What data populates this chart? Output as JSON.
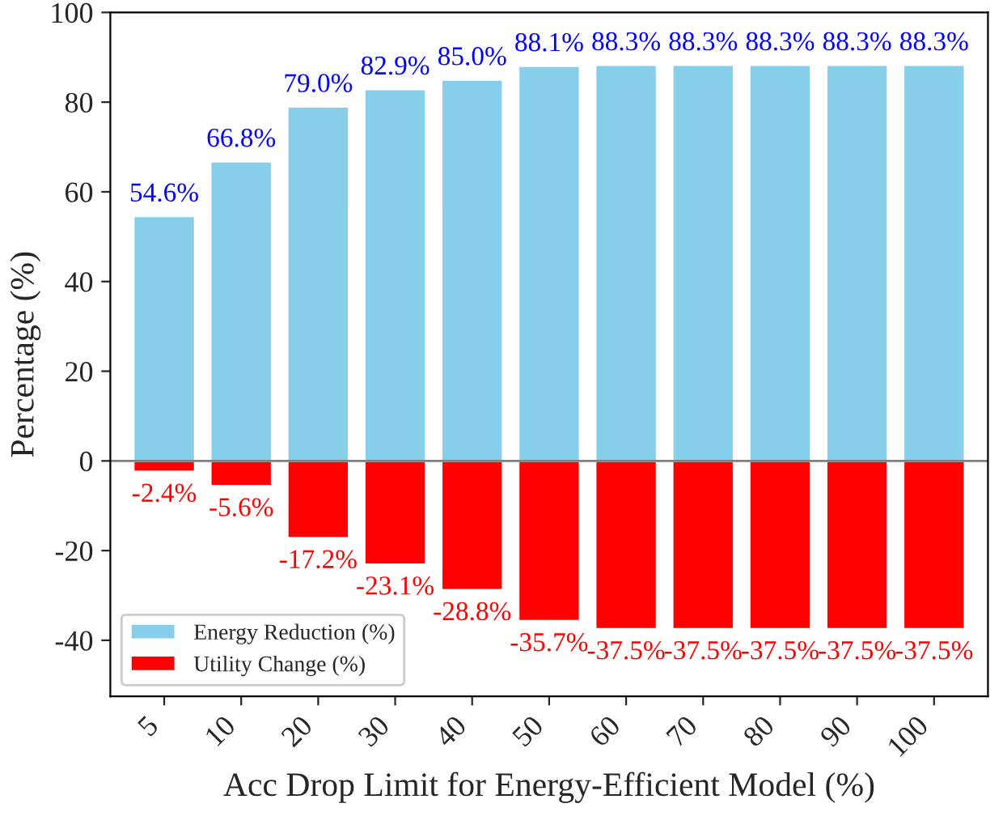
{
  "chart_data": {
    "type": "bar",
    "xlabel": "Acc Drop Limit for Energy-Efficient Model (%)",
    "ylabel": "Percentage (%)",
    "categories": [
      "5",
      "10",
      "20",
      "30",
      "40",
      "50",
      "60",
      "70",
      "80",
      "90",
      "100"
    ],
    "series": [
      {
        "name": "Energy Reduction (%)",
        "color": "#87ceeb",
        "values": [
          54.6,
          66.8,
          79.0,
          82.9,
          85.0,
          88.1,
          88.3,
          88.3,
          88.3,
          88.3,
          88.3
        ],
        "value_labels": [
          "54.6%",
          "66.8%",
          "79.0%",
          "82.9%",
          "85.0%",
          "88.1%",
          "88.3%",
          "88.3%",
          "88.3%",
          "88.3%",
          "88.3%"
        ]
      },
      {
        "name": "Utility Change (%)",
        "color": "#ff0000",
        "values": [
          -2.4,
          -5.6,
          -17.2,
          -23.1,
          -28.8,
          -35.7,
          -37.5,
          -37.5,
          -37.5,
          -37.5,
          -37.5
        ],
        "value_labels": [
          "-2.4%",
          "-5.6%",
          "-17.2%",
          "-23.1%",
          "-28.8%",
          "-35.7%",
          "-37.5%",
          "-37.5%",
          "-37.5%",
          "-37.5%",
          "-37.5%"
        ]
      }
    ],
    "ylim": [
      -52.5,
      100
    ],
    "yticks": [
      -40,
      -20,
      0,
      20,
      40,
      60,
      80,
      100
    ],
    "ref_lines": [
      {
        "axis": "y",
        "value": 0,
        "color": "#808080"
      }
    ],
    "stacked": true,
    "grid": false,
    "legend": "bottom left"
  }
}
